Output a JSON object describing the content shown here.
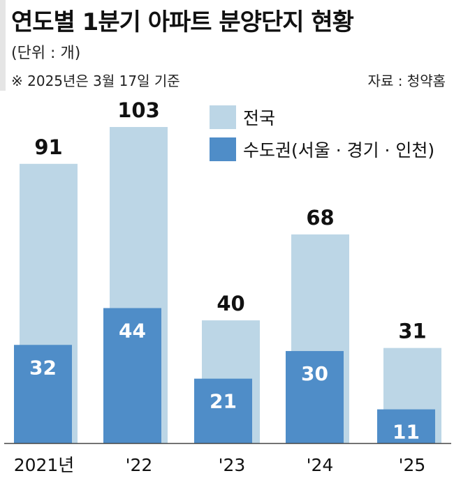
{
  "header": {
    "title": "연도별 1분기 아파트 분양단지 현황",
    "unit": "(단위 : 개)",
    "note": "※ 2025년은 3월 17일 기준",
    "source": "자료 : 청약홈"
  },
  "colors": {
    "nationwide": "#bcd6e6",
    "capital": "#4f8dc8",
    "text_dark": "#111111",
    "text_light": "#ffffff",
    "axis": "#444444"
  },
  "chart_data": {
    "type": "bar",
    "categories": [
      "2021년",
      "'22",
      "'23",
      "'24",
      "'25"
    ],
    "series": [
      {
        "name": "전국",
        "values": [
          91,
          103,
          40,
          68,
          31
        ]
      },
      {
        "name": "수도권(서울 · 경기 · 인천)",
        "values": [
          32,
          44,
          21,
          30,
          11
        ]
      }
    ],
    "ylim": [
      0,
      103
    ],
    "grid": false,
    "legend_position": "top-right"
  }
}
